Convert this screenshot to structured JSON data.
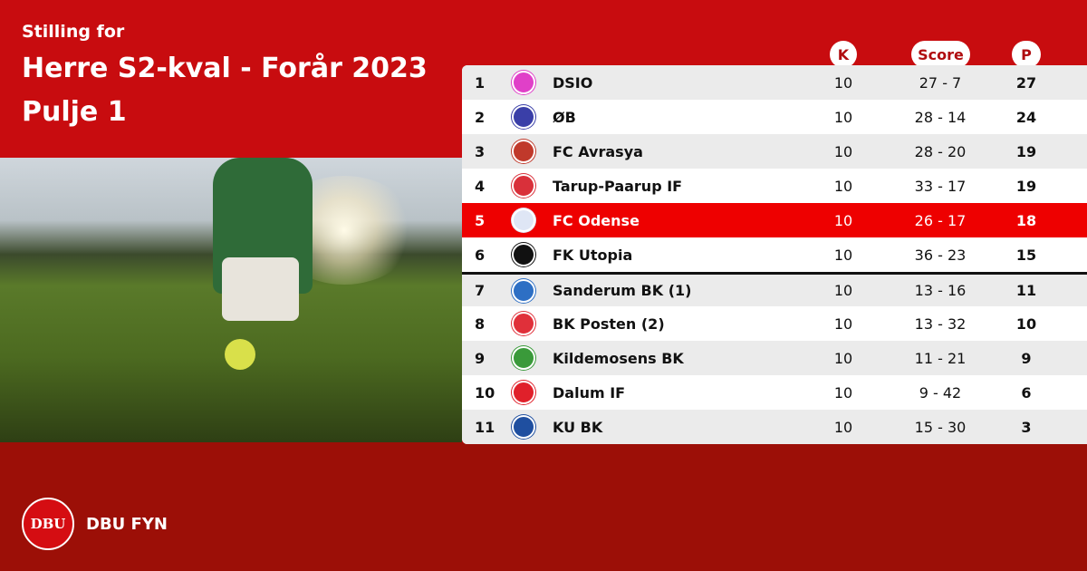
{
  "header": {
    "subtitle": "Stilling for",
    "title": "Herre S2-kval - Forår 2023",
    "pool": "Pulje 1"
  },
  "columns": {
    "k": "K",
    "score": "Score",
    "p": "P"
  },
  "highlight_color": "#ee0000",
  "rows": [
    {
      "rank": "1",
      "team": "DSIO",
      "k": "10",
      "score": "27 - 7",
      "p": "27",
      "logo_color": "#e040c8"
    },
    {
      "rank": "2",
      "team": "ØB",
      "k": "10",
      "score": "28 - 14",
      "p": "24",
      "logo_color": "#3a3fa8"
    },
    {
      "rank": "3",
      "team": "FC Avrasya",
      "k": "10",
      "score": "28 - 20",
      "p": "19",
      "logo_color": "#c0392b"
    },
    {
      "rank": "4",
      "team": "Tarup-Paarup IF",
      "k": "10",
      "score": "33 - 17",
      "p": "19",
      "logo_color": "#d9303a"
    },
    {
      "rank": "5",
      "team": "FC Odense",
      "k": "10",
      "score": "26 - 17",
      "p": "18",
      "logo_color": "#dfe6f5"
    },
    {
      "rank": "6",
      "team": "FK Utopia",
      "k": "10",
      "score": "36 - 23",
      "p": "15",
      "logo_color": "#111111"
    },
    {
      "rank": "7",
      "team": "Sanderum BK (1)",
      "k": "10",
      "score": "13 - 16",
      "p": "11",
      "logo_color": "#2d6fc4"
    },
    {
      "rank": "8",
      "team": "BK Posten (2)",
      "k": "10",
      "score": "13 - 32",
      "p": "10",
      "logo_color": "#e0303a"
    },
    {
      "rank": "9",
      "team": "Kildemosens BK",
      "k": "10",
      "score": "11 - 21",
      "p": "9",
      "logo_color": "#3a9a3a"
    },
    {
      "rank": "10",
      "team": "Dalum IF",
      "k": "10",
      "score": "9 - 42",
      "p": "6",
      "logo_color": "#e0202a"
    },
    {
      "rank": "11",
      "team": "KU BK",
      "k": "10",
      "score": "15 - 30",
      "p": "3",
      "logo_color": "#1f4fa0"
    }
  ],
  "footer": {
    "brand": "DBU FYN",
    "crest_text": "DBU"
  }
}
